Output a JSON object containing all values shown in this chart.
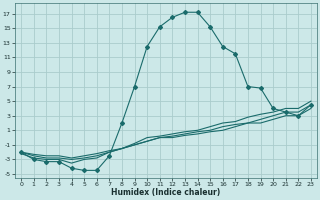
{
  "xlabel": "Humidex (Indice chaleur)",
  "bg_color": "#cce8e8",
  "grid_color": "#aacccc",
  "line_color": "#1a6b6b",
  "xlim": [
    -0.5,
    23.5
  ],
  "ylim": [
    -5.5,
    18.5
  ],
  "xticks": [
    0,
    1,
    2,
    3,
    4,
    5,
    6,
    7,
    8,
    9,
    10,
    11,
    12,
    13,
    14,
    15,
    16,
    17,
    18,
    19,
    20,
    21,
    22,
    23
  ],
  "yticks": [
    -5,
    -3,
    -1,
    1,
    3,
    5,
    7,
    9,
    11,
    13,
    15,
    17
  ],
  "curve1_x": [
    0,
    1,
    2,
    3,
    4,
    5,
    6,
    7,
    8,
    9,
    10,
    11,
    12,
    13,
    14,
    15,
    16,
    17,
    18,
    19,
    20,
    21,
    22,
    23
  ],
  "curve1_y": [
    -2,
    -3,
    -3.3,
    -3.3,
    -4.2,
    -4.5,
    -4.5,
    -2.5,
    2,
    7,
    12.5,
    15.2,
    16.5,
    17.2,
    17.2,
    15.2,
    12.5,
    11.5,
    7,
    6.8,
    4,
    3.5,
    3,
    4.5
  ],
  "curve2_x": [
    0,
    1,
    2,
    3,
    4,
    5,
    6,
    7,
    8,
    9,
    10,
    11,
    12,
    13,
    14,
    15,
    16,
    17,
    18,
    19,
    20,
    21,
    22,
    23
  ],
  "curve2_y": [
    -2.2,
    -2.8,
    -3,
    -3,
    -3.5,
    -3,
    -2.8,
    -2,
    -1.5,
    -0.8,
    0,
    0.2,
    0.5,
    0.8,
    1,
    1.5,
    2,
    2.2,
    2.8,
    3.2,
    3.5,
    4,
    4,
    5
  ],
  "curve3_x": [
    0,
    1,
    2,
    3,
    4,
    5,
    6,
    7,
    8,
    9,
    10,
    11,
    12,
    13,
    14,
    15,
    16,
    17,
    18,
    19,
    20,
    21,
    22,
    23
  ],
  "curve3_y": [
    -2,
    -2.5,
    -2.8,
    -2.8,
    -3,
    -2.8,
    -2.5,
    -2,
    -1.5,
    -1,
    -0.5,
    0,
    0.2,
    0.5,
    0.8,
    1,
    1.5,
    1.8,
    2,
    2.5,
    3,
    3.5,
    3.5,
    4.5
  ],
  "curve4_x": [
    0,
    1,
    2,
    3,
    4,
    5,
    6,
    7,
    8,
    9,
    10,
    11,
    12,
    13,
    14,
    15,
    16,
    17,
    18,
    19,
    20,
    21,
    22,
    23
  ],
  "curve4_y": [
    -2,
    -2.3,
    -2.5,
    -2.5,
    -2.8,
    -2.5,
    -2.2,
    -1.8,
    -1.5,
    -1,
    -0.5,
    0,
    0,
    0.3,
    0.5,
    0.8,
    1,
    1.5,
    2,
    2,
    2.5,
    3,
    3,
    4
  ]
}
